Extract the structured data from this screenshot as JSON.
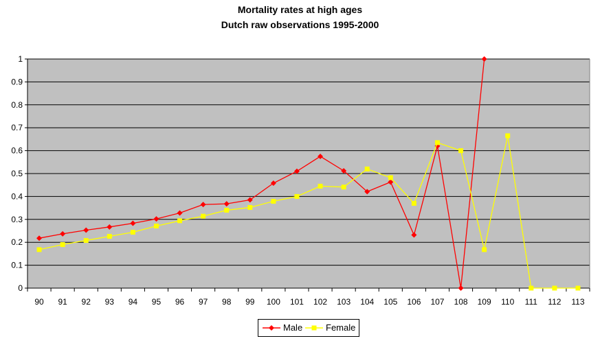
{
  "chart_data": {
    "type": "line",
    "title": "Mortality rates at high ages",
    "subtitle": "Dutch raw observations 1995-2000",
    "xlabel": "",
    "ylabel": "",
    "categories": [
      "90",
      "91",
      "92",
      "93",
      "94",
      "95",
      "96",
      "97",
      "98",
      "99",
      "100",
      "101",
      "102",
      "103",
      "104",
      "105",
      "106",
      "107",
      "108",
      "109",
      "110",
      "111",
      "112",
      "113"
    ],
    "ylim": [
      0,
      1
    ],
    "yticks": [
      "0",
      "0.1",
      "0.2",
      "0.3",
      "0.4",
      "0.5",
      "0.6",
      "0.7",
      "0.8",
      "0.9",
      "1"
    ],
    "grid": true,
    "legend_position": "bottom",
    "plot_background": "#c0c0c0",
    "series": [
      {
        "name": "Male",
        "color": "#ff0000",
        "marker": "diamond",
        "values": [
          0.218,
          0.237,
          0.253,
          0.267,
          0.283,
          0.302,
          0.328,
          0.365,
          0.368,
          0.385,
          0.458,
          0.51,
          0.575,
          0.512,
          0.421,
          0.463,
          0.232,
          0.62,
          0.0,
          1.0,
          null,
          null,
          null,
          null
        ]
      },
      {
        "name": "Female",
        "color": "#ffff00",
        "marker": "square",
        "values": [
          0.168,
          0.19,
          0.208,
          0.226,
          0.244,
          0.271,
          0.294,
          0.314,
          0.34,
          0.352,
          0.379,
          0.4,
          0.445,
          0.441,
          0.52,
          0.482,
          0.37,
          0.635,
          0.6,
          0.168,
          0.665,
          0.0,
          0.0,
          0.0
        ]
      }
    ]
  }
}
